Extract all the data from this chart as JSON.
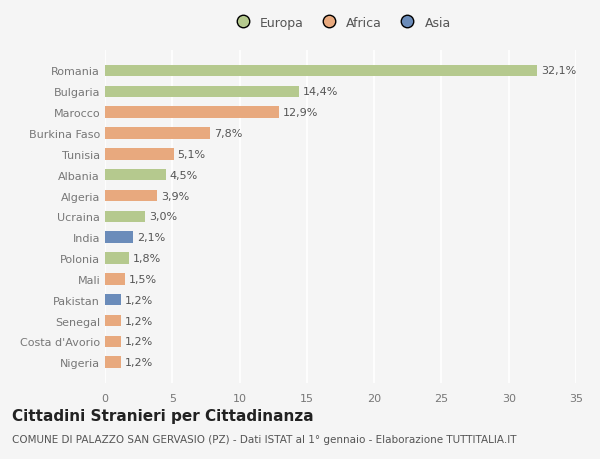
{
  "categories": [
    "Romania",
    "Bulgaria",
    "Marocco",
    "Burkina Faso",
    "Tunisia",
    "Albania",
    "Algeria",
    "Ucraina",
    "India",
    "Polonia",
    "Mali",
    "Pakistan",
    "Senegal",
    "Costa d'Avorio",
    "Nigeria"
  ],
  "values": [
    32.1,
    14.4,
    12.9,
    7.8,
    5.1,
    4.5,
    3.9,
    3.0,
    2.1,
    1.8,
    1.5,
    1.2,
    1.2,
    1.2,
    1.2
  ],
  "labels": [
    "32,1%",
    "14,4%",
    "12,9%",
    "7,8%",
    "5,1%",
    "4,5%",
    "3,9%",
    "3,0%",
    "2,1%",
    "1,8%",
    "1,5%",
    "1,2%",
    "1,2%",
    "1,2%",
    "1,2%"
  ],
  "continent": [
    "Europa",
    "Europa",
    "Africa",
    "Africa",
    "Africa",
    "Europa",
    "Africa",
    "Europa",
    "Asia",
    "Europa",
    "Africa",
    "Asia",
    "Africa",
    "Africa",
    "Africa"
  ],
  "colors": {
    "Europa": "#b5c98e",
    "Africa": "#e8a97e",
    "Asia": "#6b8cba"
  },
  "xlim": [
    0,
    35
  ],
  "xticks": [
    0,
    5,
    10,
    15,
    20,
    25,
    30,
    35
  ],
  "background_color": "#f5f5f5",
  "grid_color": "#ffffff",
  "title": "Cittadini Stranieri per Cittadinanza",
  "subtitle": "COMUNE DI PALAZZO SAN GERVASIO (PZ) - Dati ISTAT al 1° gennaio - Elaborazione TUTTITALIA.IT",
  "title_fontsize": 11,
  "subtitle_fontsize": 7.5,
  "label_fontsize": 8,
  "tick_fontsize": 8,
  "bar_height": 0.55,
  "figsize": [
    6.0,
    4.6
  ],
  "dpi": 100
}
